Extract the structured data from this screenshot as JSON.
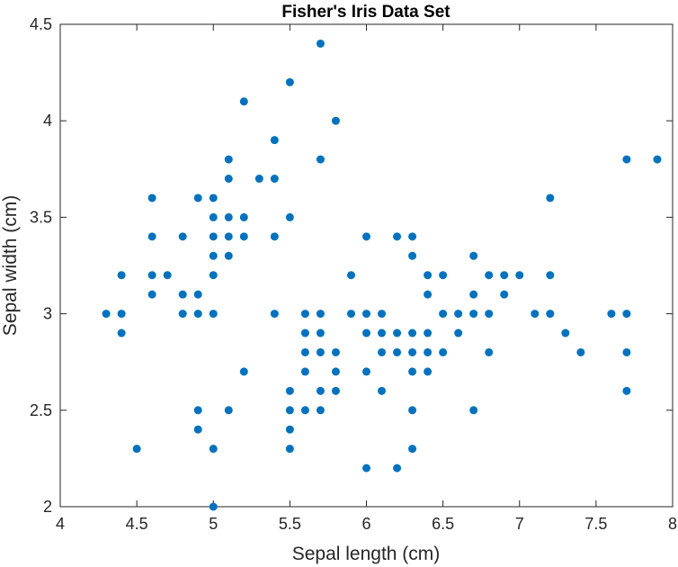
{
  "chart_data": {
    "type": "scatter",
    "title": "Fisher's Iris Data Set",
    "xlabel": "Sepal length (cm)",
    "ylabel": "Sepal width (cm)",
    "xlim": [
      4,
      8
    ],
    "ylim": [
      2,
      4.5
    ],
    "xticks": [
      "4",
      "4.5",
      "5",
      "5.5",
      "6",
      "6.5",
      "7",
      "7.5",
      "8"
    ],
    "yticks": [
      "2",
      "2.5",
      "3",
      "3.5",
      "4",
      "4.5"
    ],
    "grid": false,
    "marker_color": "#0072BD",
    "points": [
      [
        4.3,
        3.0
      ],
      [
        4.4,
        2.9
      ],
      [
        4.4,
        3.0
      ],
      [
        4.4,
        3.2
      ],
      [
        4.5,
        2.3
      ],
      [
        4.6,
        3.1
      ],
      [
        4.6,
        3.2
      ],
      [
        4.6,
        3.4
      ],
      [
        4.6,
        3.6
      ],
      [
        4.7,
        3.2
      ],
      [
        4.8,
        3.0
      ],
      [
        4.8,
        3.1
      ],
      [
        4.8,
        3.4
      ],
      [
        4.9,
        2.4
      ],
      [
        4.9,
        2.5
      ],
      [
        4.9,
        3.0
      ],
      [
        4.9,
        3.1
      ],
      [
        4.9,
        3.6
      ],
      [
        5.0,
        2.0
      ],
      [
        5.0,
        2.3
      ],
      [
        5.0,
        3.0
      ],
      [
        5.0,
        3.2
      ],
      [
        5.0,
        3.3
      ],
      [
        5.0,
        3.4
      ],
      [
        5.0,
        3.5
      ],
      [
        5.0,
        3.6
      ],
      [
        5.1,
        2.5
      ],
      [
        5.1,
        3.3
      ],
      [
        5.1,
        3.4
      ],
      [
        5.1,
        3.5
      ],
      [
        5.1,
        3.7
      ],
      [
        5.1,
        3.8
      ],
      [
        5.2,
        2.7
      ],
      [
        5.2,
        3.4
      ],
      [
        5.2,
        3.5
      ],
      [
        5.2,
        4.1
      ],
      [
        5.3,
        3.7
      ],
      [
        5.4,
        3.0
      ],
      [
        5.4,
        3.4
      ],
      [
        5.4,
        3.7
      ],
      [
        5.4,
        3.9
      ],
      [
        5.5,
        2.3
      ],
      [
        5.5,
        2.4
      ],
      [
        5.5,
        2.5
      ],
      [
        5.5,
        2.6
      ],
      [
        5.5,
        3.5
      ],
      [
        5.5,
        4.2
      ],
      [
        5.6,
        2.5
      ],
      [
        5.6,
        2.7
      ],
      [
        5.6,
        2.8
      ],
      [
        5.6,
        2.9
      ],
      [
        5.6,
        3.0
      ],
      [
        5.7,
        2.5
      ],
      [
        5.7,
        2.6
      ],
      [
        5.7,
        2.8
      ],
      [
        5.7,
        2.9
      ],
      [
        5.7,
        3.0
      ],
      [
        5.7,
        3.8
      ],
      [
        5.7,
        4.4
      ],
      [
        5.8,
        2.6
      ],
      [
        5.8,
        2.7
      ],
      [
        5.8,
        2.8
      ],
      [
        5.8,
        4.0
      ],
      [
        5.9,
        3.0
      ],
      [
        5.9,
        3.2
      ],
      [
        6.0,
        2.2
      ],
      [
        6.0,
        2.7
      ],
      [
        6.0,
        2.9
      ],
      [
        6.0,
        3.0
      ],
      [
        6.0,
        3.4
      ],
      [
        6.1,
        2.6
      ],
      [
        6.1,
        2.8
      ],
      [
        6.1,
        2.9
      ],
      [
        6.1,
        3.0
      ],
      [
        6.2,
        2.2
      ],
      [
        6.2,
        2.8
      ],
      [
        6.2,
        2.9
      ],
      [
        6.2,
        3.4
      ],
      [
        6.3,
        2.3
      ],
      [
        6.3,
        2.5
      ],
      [
        6.3,
        2.7
      ],
      [
        6.3,
        2.8
      ],
      [
        6.3,
        2.9
      ],
      [
        6.3,
        3.3
      ],
      [
        6.3,
        3.4
      ],
      [
        6.4,
        2.7
      ],
      [
        6.4,
        2.8
      ],
      [
        6.4,
        2.9
      ],
      [
        6.4,
        3.1
      ],
      [
        6.4,
        3.2
      ],
      [
        6.5,
        2.8
      ],
      [
        6.5,
        3.0
      ],
      [
        6.5,
        3.2
      ],
      [
        6.6,
        2.9
      ],
      [
        6.6,
        3.0
      ],
      [
        6.7,
        2.5
      ],
      [
        6.7,
        3.0
      ],
      [
        6.7,
        3.1
      ],
      [
        6.7,
        3.3
      ],
      [
        6.8,
        2.8
      ],
      [
        6.8,
        3.0
      ],
      [
        6.8,
        3.2
      ],
      [
        6.9,
        3.1
      ],
      [
        6.9,
        3.2
      ],
      [
        7.0,
        3.2
      ],
      [
        7.1,
        3.0
      ],
      [
        7.2,
        3.0
      ],
      [
        7.2,
        3.2
      ],
      [
        7.2,
        3.6
      ],
      [
        7.3,
        2.9
      ],
      [
        7.4,
        2.8
      ],
      [
        7.6,
        3.0
      ],
      [
        7.7,
        2.6
      ],
      [
        7.7,
        2.8
      ],
      [
        7.7,
        3.0
      ],
      [
        7.7,
        3.8
      ],
      [
        7.9,
        3.8
      ]
    ]
  }
}
